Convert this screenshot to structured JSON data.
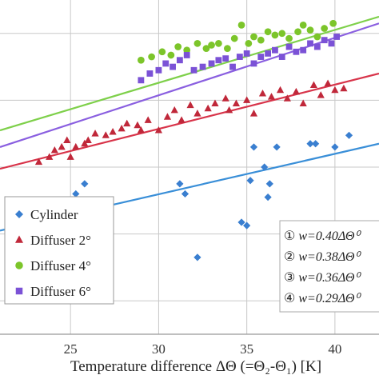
{
  "chart_data": {
    "type": "scatter",
    "xlabel": "Temperature difference ΔΘ (=Θ₂-Θ₁) [K]",
    "xlim": [
      21,
      42.5
    ],
    "ylim": [
      0,
      10
    ],
    "x_ticks": [
      "25",
      "30",
      "35",
      "40"
    ],
    "grid": true,
    "legend_position": "bottom-left",
    "series": [
      {
        "name": "Cylinder",
        "marker": "diamond",
        "color": "#3a7fd0",
        "x": [
          25.3,
          25.8,
          31.2,
          31.5,
          32.2,
          34.7,
          35.0,
          35.2,
          35.4,
          36.0,
          36.2,
          36.3,
          36.7,
          38.6,
          38.9,
          40.0,
          40.8
        ],
        "y": [
          4.2,
          4.5,
          4.5,
          4.2,
          2.3,
          3.35,
          3.25,
          4.6,
          5.6,
          5.0,
          4.1,
          4.5,
          5.6,
          5.7,
          5.7,
          5.6,
          5.95
        ],
        "fit": {
          "x": [
            21,
            42.5
          ],
          "y": [
            3.1,
            5.7
          ]
        }
      },
      {
        "name": "Diffuser 2°",
        "marker": "triangle",
        "color": "#c0283a",
        "x": [
          23.2,
          23.8,
          24.1,
          24.5,
          24.8,
          25.0,
          25.3,
          25.8,
          26.0,
          26.4,
          27.0,
          27.4,
          27.9,
          28.2,
          28.8,
          29.0,
          29.4,
          30.0,
          30.5,
          30.9,
          31.3,
          31.8,
          32.2,
          32.8,
          33.2,
          33.8,
          34.0,
          34.4,
          35.0,
          35.4,
          35.9,
          36.4,
          36.9,
          37.3,
          37.8,
          38.2,
          38.8,
          39.2,
          39.6,
          40.0,
          40.5
        ],
        "y": [
          5.15,
          5.3,
          5.5,
          5.6,
          5.8,
          5.3,
          5.6,
          5.7,
          5.8,
          6.0,
          5.95,
          6.05,
          6.15,
          6.3,
          6.25,
          6.1,
          6.4,
          6.1,
          6.5,
          6.7,
          6.4,
          6.85,
          6.6,
          6.75,
          6.9,
          7.05,
          6.7,
          6.9,
          7.0,
          6.6,
          7.2,
          7.1,
          7.3,
          7.05,
          7.25,
          6.9,
          7.45,
          7.15,
          7.5,
          7.3,
          7.35
        ],
        "fit": {
          "x": [
            21,
            42.5
          ],
          "y": [
            4.95,
            7.8
          ]
        }
      },
      {
        "name": "Diffuser 4°",
        "marker": "circle",
        "color": "#7cc52a",
        "x": [
          29.0,
          29.6,
          30.2,
          30.7,
          31.1,
          31.6,
          32.2,
          32.7,
          33.0,
          33.4,
          33.9,
          34.3,
          34.7,
          35.1,
          35.4,
          35.8,
          36.2,
          36.6,
          37.0,
          37.4,
          37.9,
          38.2,
          38.6,
          39.0,
          39.4,
          39.9
        ],
        "y": [
          8.2,
          8.3,
          8.45,
          8.35,
          8.6,
          8.5,
          8.7,
          8.55,
          8.65,
          8.7,
          8.55,
          8.85,
          9.25,
          8.7,
          8.9,
          8.8,
          9.05,
          8.95,
          9.0,
          8.85,
          9.05,
          9.25,
          9.1,
          8.9,
          9.15,
          9.3
        ],
        "fit": {
          "x": [
            21,
            42.5
          ],
          "y": [
            6.1,
            9.5
          ]
        }
      },
      {
        "name": "Diffuser 6°",
        "marker": "square",
        "color": "#7b52d6",
        "x": [
          29.0,
          29.5,
          30.0,
          30.4,
          30.8,
          31.2,
          31.6,
          32.0,
          32.5,
          33.0,
          33.4,
          33.8,
          34.2,
          34.6,
          35.0,
          35.4,
          35.8,
          36.2,
          36.6,
          37.0,
          37.4,
          37.8,
          38.2,
          38.6,
          39.0,
          39.4,
          39.8,
          40.1
        ],
        "y": [
          7.6,
          7.8,
          7.9,
          8.1,
          8.0,
          8.2,
          8.35,
          7.9,
          8.0,
          8.1,
          8.2,
          8.25,
          8.0,
          8.3,
          8.4,
          8.1,
          8.3,
          8.4,
          8.5,
          8.3,
          8.6,
          8.45,
          8.5,
          8.7,
          8.6,
          8.8,
          8.7,
          8.9
        ],
        "fit": {
          "x": [
            21,
            42.5
          ],
          "y": [
            5.6,
            9.3
          ]
        }
      }
    ],
    "annotations": [
      {
        "num": "①",
        "text": "w=0.40ΔΘ⁰"
      },
      {
        "num": "②",
        "text": "w=0.38ΔΘ⁰"
      },
      {
        "num": "③",
        "text": "w=0.36ΔΘ⁰"
      },
      {
        "num": "④",
        "text": "w=0.29ΔΘ⁰"
      }
    ]
  },
  "colors": {
    "grid": "#c8c8c8",
    "axis": "#999999",
    "fit_cylinder": "#3a8fd8",
    "fit_diffuser2": "#d8344a",
    "fit_diffuser4": "#7ed04a",
    "fit_diffuser6": "#8a5fe0"
  }
}
